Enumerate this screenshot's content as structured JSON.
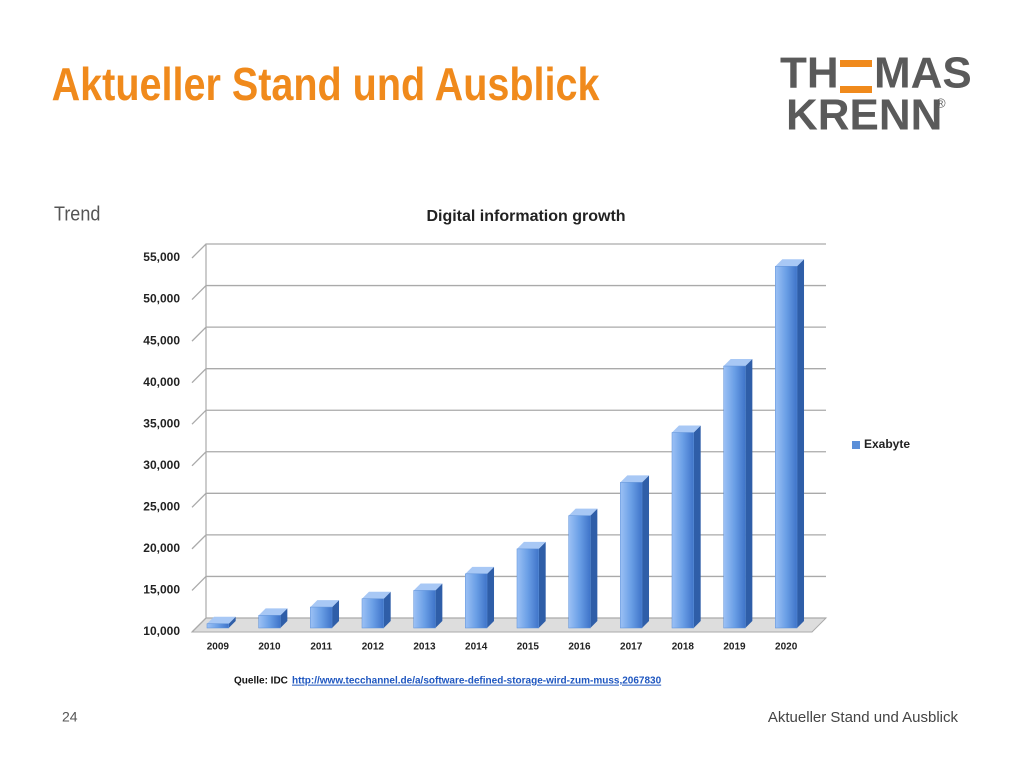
{
  "slide": {
    "title": "Aktueller Stand und Ausblick",
    "logo": {
      "line1_left": "TH",
      "line1_right": "MAS",
      "line2": "KRENN",
      "mark": "®"
    },
    "section": "Trend",
    "source_prefix": "Quelle: IDC",
    "source_link": "http://www.tecchannel.de/a/software-defined-storage-wird-zum-muss,2067830",
    "page_number": "24",
    "footer": "Aktueller Stand und Ausblick"
  },
  "chart_data": {
    "type": "bar",
    "title": "Digital information growth",
    "categories": [
      "2009",
      "2010",
      "2011",
      "2012",
      "2013",
      "2014",
      "2015",
      "2016",
      "2017",
      "2018",
      "2019",
      "2020"
    ],
    "series": [
      {
        "name": "Exabyte",
        "color": "#5b8fd8",
        "values": [
          11000,
          12000,
          13000,
          14000,
          15000,
          17000,
          20000,
          24000,
          28000,
          34000,
          42000,
          54000
        ]
      }
    ],
    "ylim": [
      10000,
      55000
    ],
    "yticks": [
      {
        "value": 10000,
        "label": "10,000"
      },
      {
        "value": 15000,
        "label": "15,000"
      },
      {
        "value": 20000,
        "label": "20,000"
      },
      {
        "value": 25000,
        "label": "25,000"
      },
      {
        "value": 30000,
        "label": "30,000"
      },
      {
        "value": 35000,
        "label": "35,000"
      },
      {
        "value": 40000,
        "label": "40,000"
      },
      {
        "value": 45000,
        "label": "45,000"
      },
      {
        "value": 50000,
        "label": "50,000"
      },
      {
        "value": 55000,
        "label": "55,000"
      }
    ],
    "grid": true,
    "legend": "right"
  }
}
